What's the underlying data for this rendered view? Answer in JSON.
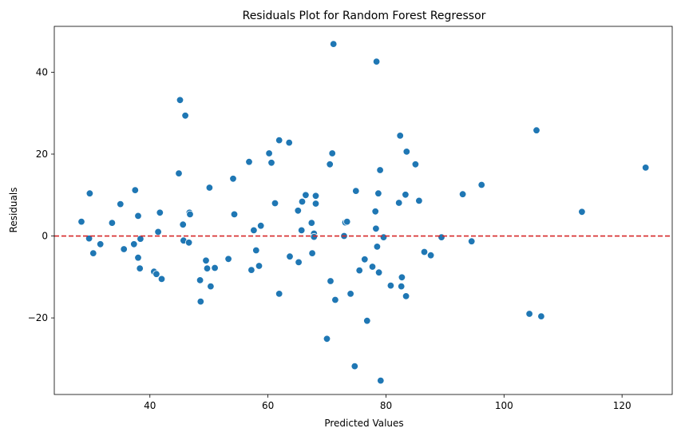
{
  "chart_data": {
    "type": "scatter",
    "title": "Residuals Plot for Random Forest Regressor",
    "xlabel": "Predicted Values",
    "ylabel": "Residuals",
    "xlim": [
      23.8,
      128.5
    ],
    "ylim": [
      -38.7,
      51.2
    ],
    "xticks": [
      40,
      60,
      80,
      100,
      120
    ],
    "yticks": [
      -20,
      0,
      20,
      40
    ],
    "xtick_labels": [
      "40",
      "60",
      "80",
      "100",
      "120"
    ],
    "ytick_labels": [
      "−20",
      "0",
      "20",
      "40"
    ],
    "grid": false,
    "point_color": "#1f77b4",
    "reference_line": {
      "y": 0,
      "color": "#d62728",
      "style": "dashed"
    },
    "points": [
      [
        28.4,
        3.5
      ],
      [
        29.7,
        -0.6
      ],
      [
        29.8,
        10.4
      ],
      [
        30.4,
        -4.2
      ],
      [
        31.6,
        -2.0
      ],
      [
        33.6,
        3.2
      ],
      [
        35.0,
        7.8
      ],
      [
        35.6,
        -3.2
      ],
      [
        37.3,
        -2.0
      ],
      [
        37.5,
        11.2
      ],
      [
        38.0,
        4.9
      ],
      [
        38.0,
        -5.3
      ],
      [
        38.3,
        -7.9
      ],
      [
        38.4,
        -0.7
      ],
      [
        40.7,
        -8.7
      ],
      [
        41.1,
        -9.3
      ],
      [
        41.4,
        1.0
      ],
      [
        41.7,
        5.7
      ],
      [
        42.0,
        -10.5
      ],
      [
        44.9,
        15.3
      ],
      [
        45.1,
        33.2
      ],
      [
        45.6,
        2.8
      ],
      [
        45.7,
        -1.1
      ],
      [
        46.0,
        29.4
      ],
      [
        46.6,
        -1.6
      ],
      [
        46.7,
        5.7
      ],
      [
        46.8,
        5.3
      ],
      [
        48.5,
        -10.8
      ],
      [
        48.6,
        -16.0
      ],
      [
        49.5,
        -6.0
      ],
      [
        49.7,
        -7.9
      ],
      [
        50.1,
        11.8
      ],
      [
        50.3,
        -12.3
      ],
      [
        51.0,
        -7.8
      ],
      [
        53.3,
        -5.6
      ],
      [
        54.1,
        14.0
      ],
      [
        54.3,
        5.3
      ],
      [
        56.8,
        18.1
      ],
      [
        57.2,
        -8.3
      ],
      [
        57.6,
        1.4
      ],
      [
        58.0,
        -3.5
      ],
      [
        58.5,
        -7.3
      ],
      [
        58.8,
        2.5
      ],
      [
        60.2,
        20.2
      ],
      [
        60.6,
        17.9
      ],
      [
        61.2,
        8.0
      ],
      [
        61.9,
        -14.1
      ],
      [
        61.9,
        23.4
      ],
      [
        63.6,
        22.8
      ],
      [
        63.7,
        -5.0
      ],
      [
        65.1,
        6.2
      ],
      [
        65.2,
        -6.4
      ],
      [
        65.7,
        1.4
      ],
      [
        65.8,
        8.4
      ],
      [
        66.4,
        10.0
      ],
      [
        67.4,
        3.2
      ],
      [
        67.5,
        -4.2
      ],
      [
        67.8,
        0.6
      ],
      [
        67.8,
        -0.2
      ],
      [
        68.1,
        9.8
      ],
      [
        68.1,
        7.9
      ],
      [
        70.0,
        -25.1
      ],
      [
        70.5,
        17.5
      ],
      [
        70.6,
        -11.0
      ],
      [
        70.9,
        20.2
      ],
      [
        71.1,
        46.9
      ],
      [
        71.4,
        -15.6
      ],
      [
        72.9,
        0.0
      ],
      [
        73.1,
        3.3
      ],
      [
        73.4,
        3.5
      ],
      [
        74.0,
        -14.1
      ],
      [
        74.7,
        -31.8
      ],
      [
        74.9,
        11.0
      ],
      [
        75.5,
        -8.4
      ],
      [
        76.4,
        -5.7
      ],
      [
        76.8,
        -20.7
      ],
      [
        77.7,
        -7.5
      ],
      [
        78.2,
        6.0
      ],
      [
        78.3,
        1.8
      ],
      [
        78.4,
        42.6
      ],
      [
        78.5,
        -2.6
      ],
      [
        78.7,
        10.4
      ],
      [
        78.8,
        -8.9
      ],
      [
        79.0,
        16.1
      ],
      [
        79.1,
        -35.3
      ],
      [
        79.6,
        -0.3
      ],
      [
        80.8,
        -12.1
      ],
      [
        82.2,
        8.1
      ],
      [
        82.4,
        24.5
      ],
      [
        82.6,
        -12.3
      ],
      [
        82.7,
        -10.1
      ],
      [
        83.3,
        10.1
      ],
      [
        83.4,
        -14.7
      ],
      [
        83.5,
        20.6
      ],
      [
        85.0,
        17.5
      ],
      [
        85.6,
        8.6
      ],
      [
        86.5,
        -3.9
      ],
      [
        87.6,
        -4.7
      ],
      [
        89.4,
        -0.3
      ],
      [
        93.0,
        10.2
      ],
      [
        94.5,
        -1.3
      ],
      [
        96.2,
        12.5
      ],
      [
        104.3,
        -19.0
      ],
      [
        105.5,
        25.8
      ],
      [
        106.3,
        -19.6
      ],
      [
        113.2,
        5.9
      ],
      [
        124.0,
        16.7
      ]
    ]
  }
}
